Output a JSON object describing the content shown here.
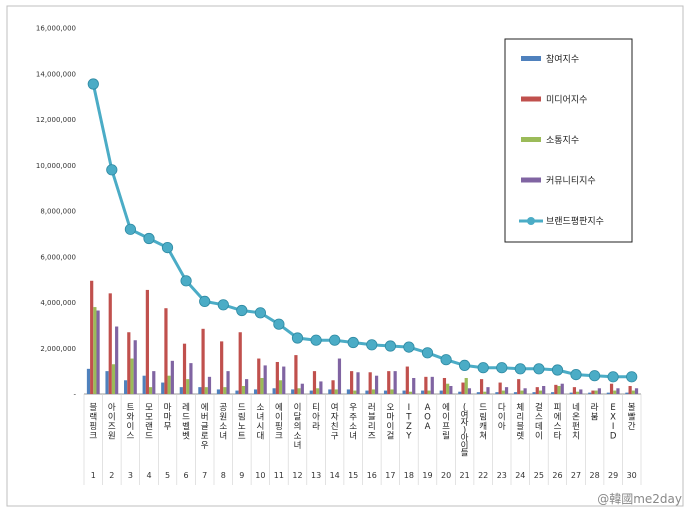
{
  "chart_data": {
    "type": "bar",
    "categories": [
      "블랙핑크",
      "아이즈원",
      "트와이스",
      "모모랜드",
      "마마무",
      "레드벨벳",
      "에버글로우",
      "공원소녀",
      "드림노트",
      "소녀시대",
      "에이핑크",
      "이달의소녀",
      "티아라",
      "여자친구",
      "우주소녀",
      "러블리즈",
      "오마이걸",
      "ITZY",
      "AOA",
      "에이프릴",
      "(여자)아이들",
      "드림캐쳐",
      "다이아",
      "체리블렛",
      "걸스데이",
      "피에스타",
      "네온펀치",
      "라붐",
      "EXID",
      "볼빨간"
    ],
    "category_labels": [
      "블랙핑크",
      "아이즈원",
      "트와이스",
      "모모랜드",
      "마마무",
      "레드벨벳",
      "에버글로우",
      "공원소녀",
      "드림노트",
      "소녀시대",
      "에이핑크",
      "이달의소녀",
      "티아라",
      "여자친구",
      "우주소녀",
      "러블리즈",
      "오마이걸",
      "ITZY",
      "AOA",
      "에이프릴",
      "(여자)아이들",
      "드림캐쳐",
      "다이아",
      "체리블렛",
      "걸스데이",
      "피에스타",
      "네온펀치",
      "라붐",
      "EXID",
      "볼빨간"
    ],
    "index_labels": [
      "1",
      "2",
      "3",
      "4",
      "5",
      "6",
      "7",
      "8",
      "9",
      "10",
      "11",
      "12",
      "13",
      "14",
      "15",
      "16",
      "17",
      "18",
      "19",
      "20",
      "21",
      "22",
      "23",
      "24",
      "25",
      "26",
      "27",
      "28",
      "29",
      "30"
    ],
    "series": [
      {
        "name": "참여지수",
        "color": "#4f81bd",
        "values": [
          1100000,
          1000000,
          600000,
          800000,
          500000,
          300000,
          300000,
          200000,
          150000,
          200000,
          250000,
          200000,
          150000,
          200000,
          200000,
          150000,
          150000,
          150000,
          150000,
          150000,
          100000,
          80000,
          80000,
          80000,
          80000,
          80000,
          60000,
          60000,
          60000,
          60000
        ]
      },
      {
        "name": "미디어지수",
        "color": "#c0504d",
        "values": [
          4950000,
          4400000,
          2700000,
          4550000,
          3750000,
          2200000,
          2850000,
          2300000,
          2700000,
          1550000,
          1400000,
          1700000,
          1000000,
          600000,
          1000000,
          950000,
          1000000,
          1200000,
          750000,
          700000,
          500000,
          650000,
          500000,
          650000,
          300000,
          400000,
          300000,
          150000,
          450000,
          350000
        ]
      },
      {
        "name": "소통지수",
        "color": "#9bbb59",
        "values": [
          3800000,
          1300000,
          1550000,
          300000,
          800000,
          650000,
          300000,
          300000,
          350000,
          700000,
          600000,
          250000,
          250000,
          200000,
          150000,
          200000,
          200000,
          100000,
          150000,
          450000,
          700000,
          100000,
          150000,
          150000,
          150000,
          350000,
          100000,
          150000,
          150000,
          150000
        ]
      },
      {
        "name": "커뮤니티지수",
        "color": "#8064a2",
        "values": [
          3650000,
          2950000,
          2350000,
          1000000,
          1450000,
          1350000,
          750000,
          1000000,
          650000,
          1250000,
          1200000,
          450000,
          550000,
          1550000,
          950000,
          800000,
          1000000,
          700000,
          750000,
          350000,
          250000,
          300000,
          300000,
          250000,
          350000,
          450000,
          200000,
          250000,
          250000,
          250000
        ]
      }
    ],
    "line": {
      "name": "브랜드평판지수",
      "color": "#4bacc6",
      "values": [
        13550000,
        9800000,
        7200000,
        6800000,
        6400000,
        4950000,
        4050000,
        3900000,
        3650000,
        3550000,
        3050000,
        2450000,
        2350000,
        2350000,
        2250000,
        2150000,
        2100000,
        2050000,
        1800000,
        1500000,
        1250000,
        1150000,
        1150000,
        1100000,
        1100000,
        1050000,
        850000,
        800000,
        750000,
        750000
      ]
    },
    "y_ticks": [
      "16,000,000",
      "14,000,000",
      "12,000,000",
      "10,000,000",
      "8,000,000",
      "6,000,000",
      "4,000,000",
      "2,000,000",
      "-"
    ],
    "ylim": [
      0,
      16000000
    ],
    "legend_position": "top-right"
  },
  "watermark": "@韓國me2day"
}
